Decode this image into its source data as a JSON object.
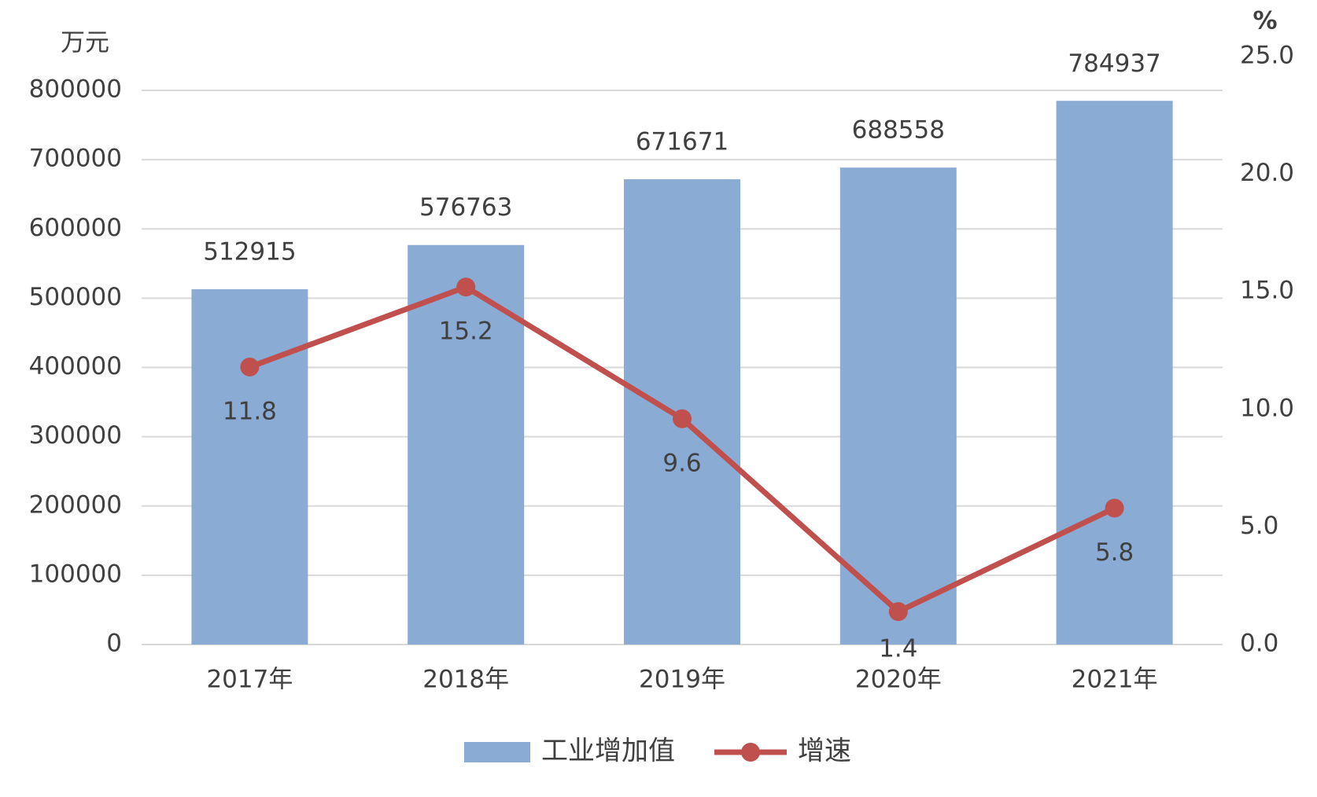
{
  "chart_data": {
    "type": "bar-line",
    "y_unit": "万元",
    "y2_unit": "%",
    "categories": [
      "2017年",
      "2018年",
      "2019年",
      "2020年",
      "2021年"
    ],
    "series": [
      {
        "name": "工业增加值",
        "color": "#8aabd4",
        "type": "bar",
        "values": [
          512915,
          576763,
          671671,
          688558,
          784937
        ]
      },
      {
        "name": "增速",
        "color": "#c0504d",
        "type": "line",
        "axis": "y2",
        "values": [
          11.8,
          15.2,
          9.6,
          1.4,
          5.8
        ]
      }
    ],
    "ylim": [
      0,
      800000
    ],
    "yticks": [
      0,
      100000,
      200000,
      300000,
      400000,
      500000,
      600000,
      700000,
      800000
    ],
    "y2lim": [
      0,
      25
    ],
    "y2ticks": [
      {
        "value": 0,
        "label": "0.0"
      },
      {
        "value": 5,
        "label": "5.0"
      },
      {
        "value": 10,
        "label": "10.0"
      },
      {
        "value": 15,
        "label": "15.0"
      },
      {
        "value": 20,
        "label": "20.0"
      },
      {
        "value": 25,
        "label": "25.0"
      }
    ],
    "grid": true,
    "legend": "bottom"
  }
}
